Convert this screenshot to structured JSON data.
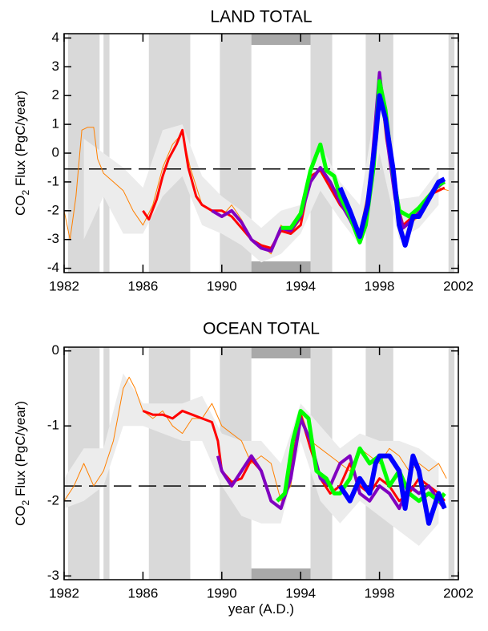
{
  "chart_data": [
    {
      "type": "line",
      "title": "LAND TOTAL",
      "ylabel": {
        "main": "CO",
        "sub": "2",
        "rest": " Flux (PgC/year)"
      },
      "xlim": [
        1982,
        2002
      ],
      "xticks": [
        1982,
        1986,
        1990,
        1994,
        1998,
        2002
      ],
      "ylim": [
        -4.15,
        4.15
      ],
      "yticks": [
        -4,
        -3,
        -2,
        -1,
        0,
        1,
        2,
        3,
        4
      ],
      "bands": [
        [
          1982.2,
          1983.8
        ],
        [
          1984.0,
          1984.3
        ],
        [
          1986.3,
          1988.4
        ],
        [
          1989.9,
          1991.5
        ],
        [
          1994.5,
          1995.6
        ],
        [
          1997.3,
          1998.7
        ],
        [
          2001.5,
          2001.8
        ]
      ],
      "highlight_period": [
        1991.5,
        1994.5
      ],
      "reference_line": -0.55,
      "envelope": {
        "x": [
          1983,
          1984,
          1985,
          1986,
          1987,
          1988,
          1989,
          1990,
          1991,
          1992,
          1993,
          1994,
          1995,
          1996,
          1997,
          1998,
          1999,
          2000,
          2001
        ],
        "lower": [
          -3,
          -1.5,
          -2.8,
          -2.8,
          -1.5,
          -0.8,
          -2.5,
          -2.8,
          -3.2,
          -3.8,
          -3.5,
          -2.8,
          -1.3,
          -2.3,
          -3.2,
          0,
          -3.0,
          -2.6,
          -1.8
        ],
        "upper": [
          0.5,
          0,
          -0.5,
          -1.2,
          0.8,
          1.0,
          -0.8,
          -1.5,
          -2.0,
          -2.6,
          -2.0,
          -1.8,
          0.3,
          -1.0,
          -1.8,
          2.5,
          -1.6,
          -1.5,
          -0.6
        ]
      },
      "series": [
        {
          "color": "#ff8000",
          "linewidth": 1,
          "x": [
            1982.0,
            1982.3,
            1982.6,
            1982.9,
            1983.2,
            1983.5,
            1983.7,
            1984.0,
            1984.5,
            1985.0,
            1985.5,
            1986.0,
            1986.5,
            1987.0,
            1987.5,
            1988.0,
            1988.4,
            1989.0,
            1989.5,
            1990.0,
            1990.5,
            1991.0,
            1991.5,
            1992.0,
            1992.5,
            1993.0,
            1993.5,
            1994.0,
            1994.5,
            1995.0,
            1995.5,
            1996.0,
            1996.5,
            1997.0,
            1997.5,
            1998.0,
            1998.3,
            1998.7,
            1999.0,
            1999.5,
            2000.0,
            2000.5,
            2001.0,
            2001.5
          ],
          "values": [
            -2.0,
            -3.0,
            -1.5,
            0.8,
            0.9,
            0.9,
            -0.2,
            -0.7,
            -1.0,
            -1.3,
            -2.0,
            -2.5,
            -1.8,
            -0.5,
            0.3,
            0.7,
            -0.5,
            -1.8,
            -2.0,
            -2.2,
            -1.8,
            -2.3,
            -3.0,
            -3.2,
            -3.5,
            -2.5,
            -2.8,
            -2.3,
            -1.0,
            -0.5,
            -1.0,
            -1.5,
            -2.0,
            -2.7,
            -1.0,
            2.5,
            0.5,
            -1.0,
            -2.5,
            -2.5,
            -2.2,
            -1.5,
            -1.2,
            -1.3
          ]
        },
        {
          "color": "#ff0000",
          "linewidth": 3,
          "x": [
            1986.0,
            1986.3,
            1986.7,
            1987.0,
            1987.3,
            1987.7,
            1988.0,
            1988.3,
            1988.7,
            1989.0,
            1989.5,
            1990.0,
            1990.5,
            1991.0,
            1991.5,
            1992.0,
            1992.5,
            1993.0,
            1993.5,
            1994.0,
            1994.5,
            1995.0,
            1995.5,
            1996.0,
            1996.5,
            1997.0,
            1997.5,
            1998.0,
            1998.4,
            1998.8,
            1999.2,
            1999.7,
            2000.2,
            2000.7,
            2001.3
          ],
          "values": [
            -2.0,
            -2.3,
            -1.6,
            -0.8,
            -0.2,
            0.3,
            0.8,
            -0.5,
            -1.5,
            -1.8,
            -2.0,
            -2.0,
            -2.2,
            -2.6,
            -3.0,
            -3.2,
            -3.3,
            -2.7,
            -2.8,
            -2.5,
            -0.8,
            -0.6,
            -1.2,
            -1.8,
            -2.2,
            -2.9,
            -1.5,
            2.3,
            0.5,
            -1.5,
            -2.5,
            -2.2,
            -2.0,
            -1.4,
            -1.2
          ]
        },
        {
          "color": "#8000c0",
          "linewidth": 4,
          "x": [
            1989.5,
            1990.0,
            1990.5,
            1991.0,
            1991.5,
            1992.0,
            1992.5,
            1993.0,
            1993.5,
            1994.0,
            1994.5,
            1995.0,
            1995.5,
            1996.0,
            1996.5,
            1997.0,
            1997.5,
            1998.0,
            1998.4,
            1998.8,
            1999.2,
            1999.7,
            2000.2,
            2000.7,
            2001.3
          ],
          "values": [
            -2.0,
            -2.2,
            -2.0,
            -2.4,
            -3.0,
            -3.3,
            -3.4,
            -2.6,
            -2.7,
            -2.2,
            -1.0,
            -0.5,
            -1.0,
            -1.7,
            -2.3,
            -3.0,
            -1.3,
            2.8,
            0.4,
            -1.6,
            -2.6,
            -2.3,
            -1.9,
            -1.3,
            -1.0
          ]
        },
        {
          "color": "#00ff00",
          "linewidth": 5,
          "x": [
            1993.0,
            1993.5,
            1994.0,
            1994.5,
            1995.0,
            1995.3,
            1995.7,
            1996.0,
            1996.5,
            1997.0,
            1997.3,
            1997.7,
            1998.0,
            1998.3,
            1998.7,
            1999.0,
            1999.5,
            2000.0,
            2000.5,
            2001.0,
            2001.3
          ],
          "values": [
            -2.6,
            -2.6,
            -2.1,
            -0.6,
            0.3,
            -0.6,
            -0.8,
            -1.5,
            -2.2,
            -3.1,
            -2.5,
            -0.5,
            2.5,
            1.5,
            -0.8,
            -2.0,
            -2.2,
            -1.9,
            -1.5,
            -1.1,
            -1.0
          ]
        },
        {
          "color": "#0000ff",
          "linewidth": 6,
          "x": [
            1996.0,
            1996.5,
            1997.0,
            1997.4,
            1997.8,
            1998.0,
            1998.3,
            1998.7,
            1999.0,
            1999.3,
            1999.7,
            2000.0,
            2000.5,
            2001.0,
            2001.3
          ],
          "values": [
            -1.2,
            -2.0,
            -2.9,
            -1.8,
            0.5,
            2.0,
            1.2,
            -0.6,
            -2.5,
            -3.2,
            -2.2,
            -2.2,
            -1.6,
            -1.0,
            -0.9
          ]
        }
      ]
    },
    {
      "type": "line",
      "title": "OCEAN TOTAL",
      "ylabel": {
        "main": "CO",
        "sub": "2",
        "rest": " Flux (PgC/year)"
      },
      "xlabel": "year (A.D.)",
      "xlim": [
        1982,
        2002
      ],
      "xticks": [
        1982,
        1986,
        1990,
        1994,
        1998,
        2002
      ],
      "ylim": [
        -3.05,
        0.05
      ],
      "yticks": [
        -3,
        -2,
        -1,
        0
      ],
      "bands": [
        [
          1982.2,
          1983.8
        ],
        [
          1984.0,
          1984.3
        ],
        [
          1986.3,
          1988.4
        ],
        [
          1989.9,
          1991.5
        ],
        [
          1994.5,
          1995.6
        ],
        [
          1997.3,
          1998.7
        ],
        [
          2001.5,
          2001.8
        ]
      ],
      "highlight_period": [
        1991.5,
        1994.5
      ],
      "reference_line": -1.8,
      "envelope": {
        "x": [
          1982,
          1983,
          1984,
          1985,
          1986,
          1987,
          1988,
          1989,
          1990,
          1991,
          1992,
          1993,
          1994,
          1995,
          1996,
          1997,
          1998,
          1999,
          2000,
          2001
        ],
        "lower": [
          -2.1,
          -2.0,
          -1.8,
          -1.0,
          -1.0,
          -1.1,
          -1.2,
          -1.2,
          -1.8,
          -2.2,
          -2.3,
          -2.3,
          -1.2,
          -2.0,
          -2.3,
          -2.0,
          -2.2,
          -2.4,
          -2.6,
          -2.3
        ],
        "upper": [
          -1.7,
          -1.3,
          -1.3,
          -0.3,
          -0.7,
          -0.7,
          -0.7,
          -0.6,
          -1.1,
          -1.2,
          -1.2,
          -1.5,
          -0.7,
          -1.0,
          -1.3,
          -1.1,
          -1.2,
          -1.2,
          -1.3,
          -1.5
        ]
      },
      "series": [
        {
          "color": "#ff8000",
          "linewidth": 1,
          "x": [
            1982.0,
            1982.5,
            1983.0,
            1983.5,
            1984.0,
            1984.5,
            1985.0,
            1985.3,
            1985.6,
            1986.0,
            1986.5,
            1987.0,
            1987.5,
            1988.0,
            1988.5,
            1989.0,
            1989.5,
            1990.0,
            1990.5,
            1991.0,
            1991.5,
            1992.0,
            1992.5,
            1993.0,
            1993.5,
            1994.0,
            1994.5,
            1995.0,
            1995.5,
            1996.0,
            1996.5,
            1997.0,
            1997.5,
            1998.0,
            1998.5,
            1999.0,
            1999.5,
            2000.0,
            2000.5,
            2001.0,
            2001.4
          ],
          "values": [
            -2.0,
            -1.8,
            -1.5,
            -1.8,
            -1.6,
            -1.2,
            -0.5,
            -0.35,
            -0.5,
            -0.8,
            -0.9,
            -0.8,
            -1.0,
            -1.1,
            -0.9,
            -0.9,
            -0.7,
            -1.0,
            -1.1,
            -1.2,
            -1.5,
            -1.4,
            -1.5,
            -2.0,
            -1.8,
            -0.8,
            -1.2,
            -1.3,
            -1.4,
            -1.5,
            -1.6,
            -1.3,
            -1.4,
            -1.5,
            -1.3,
            -1.4,
            -1.6,
            -1.5,
            -1.6,
            -1.5,
            -1.7
          ]
        },
        {
          "color": "#ff0000",
          "linewidth": 3,
          "x": [
            1986.0,
            1986.5,
            1987.0,
            1987.5,
            1988.0,
            1988.5,
            1989.0,
            1989.5,
            1989.8,
            1990.0,
            1990.5,
            1991.0,
            1991.5,
            1992.0,
            1992.5,
            1993.0,
            1993.5,
            1994.0,
            1994.5,
            1995.0,
            1995.5,
            1996.0,
            1996.5,
            1997.0,
            1997.5,
            1998.0,
            1998.5,
            1999.0,
            1999.5,
            2000.0,
            2000.5,
            2001.0,
            2001.3
          ],
          "values": [
            -0.8,
            -0.85,
            -0.85,
            -0.9,
            -0.8,
            -0.85,
            -0.9,
            -0.95,
            -1.2,
            -1.6,
            -1.75,
            -1.7,
            -1.45,
            -1.6,
            -2.0,
            -2.1,
            -1.6,
            -0.85,
            -1.3,
            -1.7,
            -1.9,
            -1.8,
            -1.5,
            -1.8,
            -1.9,
            -1.7,
            -1.8,
            -2.0,
            -1.9,
            -1.7,
            -1.8,
            -1.9,
            -2.0
          ]
        },
        {
          "color": "#8000c0",
          "linewidth": 4,
          "x": [
            1989.8,
            1990.0,
            1990.5,
            1991.0,
            1991.5,
            1992.0,
            1992.5,
            1993.0,
            1993.5,
            1994.0,
            1994.5,
            1995.0,
            1995.5,
            1996.0,
            1996.5,
            1997.0,
            1997.5,
            1998.0,
            1998.5,
            1999.0,
            1999.5,
            2000.0,
            2000.5,
            2001.0,
            2001.3
          ],
          "values": [
            -1.4,
            -1.6,
            -1.8,
            -1.6,
            -1.4,
            -1.6,
            -2.0,
            -2.1,
            -1.7,
            -0.9,
            -1.2,
            -1.7,
            -1.8,
            -1.5,
            -1.4,
            -1.9,
            -2.0,
            -1.8,
            -1.9,
            -2.1,
            -1.8,
            -1.9,
            -1.8,
            -2.0,
            -2.1
          ]
        },
        {
          "color": "#00ff00",
          "linewidth": 5,
          "x": [
            1992.8,
            1993.2,
            1993.6,
            1994.0,
            1994.4,
            1994.8,
            1995.3,
            1995.7,
            1996.0,
            1996.5,
            1997.0,
            1997.5,
            1998.0,
            1998.5,
            1999.0,
            1999.5,
            2000.0,
            2000.5,
            2001.0,
            2001.3
          ],
          "values": [
            -2.0,
            -1.9,
            -1.2,
            -0.8,
            -0.9,
            -1.6,
            -1.7,
            -1.9,
            -1.9,
            -1.7,
            -1.3,
            -1.5,
            -1.4,
            -1.8,
            -1.6,
            -1.9,
            -2.0,
            -1.9,
            -2.0,
            -1.9
          ]
        },
        {
          "color": "#0000ff",
          "linewidth": 6,
          "x": [
            1996.0,
            1996.5,
            1997.0,
            1997.5,
            1997.8,
            1998.0,
            1998.5,
            1999.0,
            1999.3,
            1999.7,
            2000.0,
            2000.5,
            2001.0,
            2001.3
          ],
          "values": [
            -1.8,
            -2.0,
            -1.7,
            -1.9,
            -1.5,
            -1.4,
            -1.4,
            -1.6,
            -2.1,
            -1.4,
            -1.6,
            -2.3,
            -1.9,
            -2.1
          ]
        }
      ]
    }
  ]
}
